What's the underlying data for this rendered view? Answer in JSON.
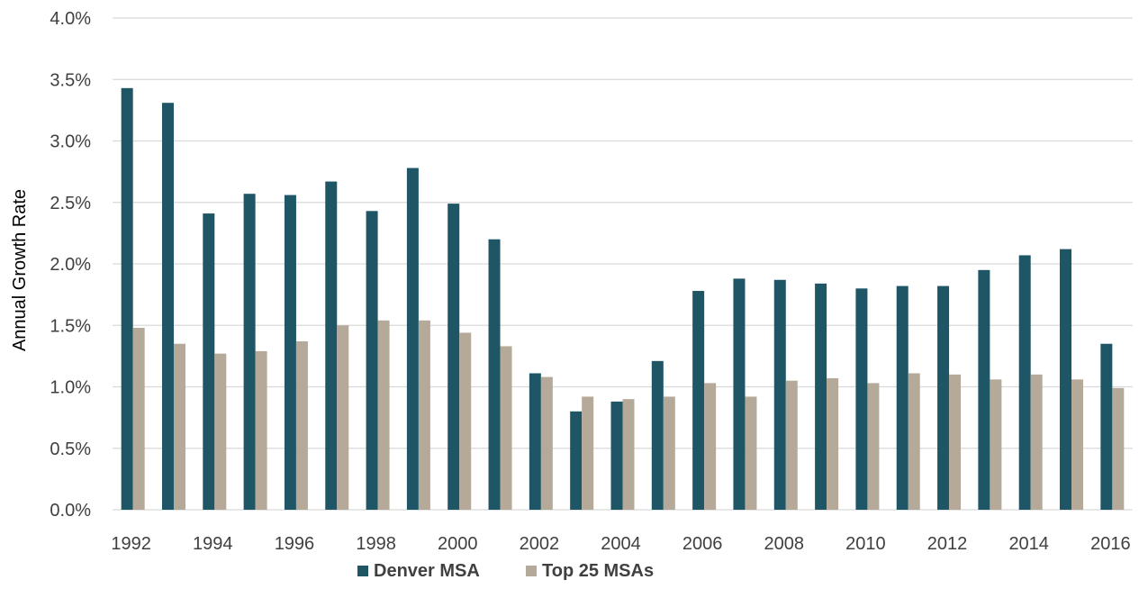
{
  "chart_data": {
    "type": "bar",
    "title": "",
    "xlabel": "",
    "ylabel": "Annual Growth Rate",
    "ylim": [
      0,
      4.0
    ],
    "y_ticks": [
      "0.0%",
      "0.5%",
      "1.0%",
      "1.5%",
      "2.0%",
      "2.5%",
      "3.0%",
      "3.5%",
      "4.0%"
    ],
    "x_tick_labels": [
      "1992",
      "1994",
      "1996",
      "1998",
      "2000",
      "2002",
      "2004",
      "2006",
      "2008",
      "2010",
      "2012",
      "2014",
      "2016"
    ],
    "categories": [
      "1992",
      "1993",
      "1994",
      "1995",
      "1996",
      "1997",
      "1998",
      "1999",
      "2000",
      "2001",
      "2002",
      "2003",
      "2004",
      "2005",
      "2006",
      "2007",
      "2008",
      "2009",
      "2010",
      "2011",
      "2012",
      "2013",
      "2014",
      "2015",
      "2016"
    ],
    "series": [
      {
        "name": "Denver MSA",
        "color": "#1f5666",
        "values": [
          3.43,
          3.31,
          2.41,
          2.57,
          2.56,
          2.67,
          2.43,
          2.78,
          2.49,
          2.2,
          1.11,
          0.8,
          0.88,
          1.21,
          1.78,
          1.88,
          1.87,
          1.84,
          1.8,
          1.82,
          1.82,
          1.95,
          2.07,
          2.12,
          1.35
        ]
      },
      {
        "name": "Top 25 MSAs",
        "color": "#b5a99a",
        "values": [
          1.48,
          1.35,
          1.27,
          1.29,
          1.37,
          1.5,
          1.54,
          1.54,
          1.44,
          1.33,
          1.08,
          0.92,
          0.9,
          0.92,
          1.03,
          0.92,
          1.05,
          1.07,
          1.03,
          1.11,
          1.1,
          1.06,
          1.1,
          1.06,
          0.99
        ]
      }
    ],
    "grid": true,
    "legend_position": "bottom"
  }
}
